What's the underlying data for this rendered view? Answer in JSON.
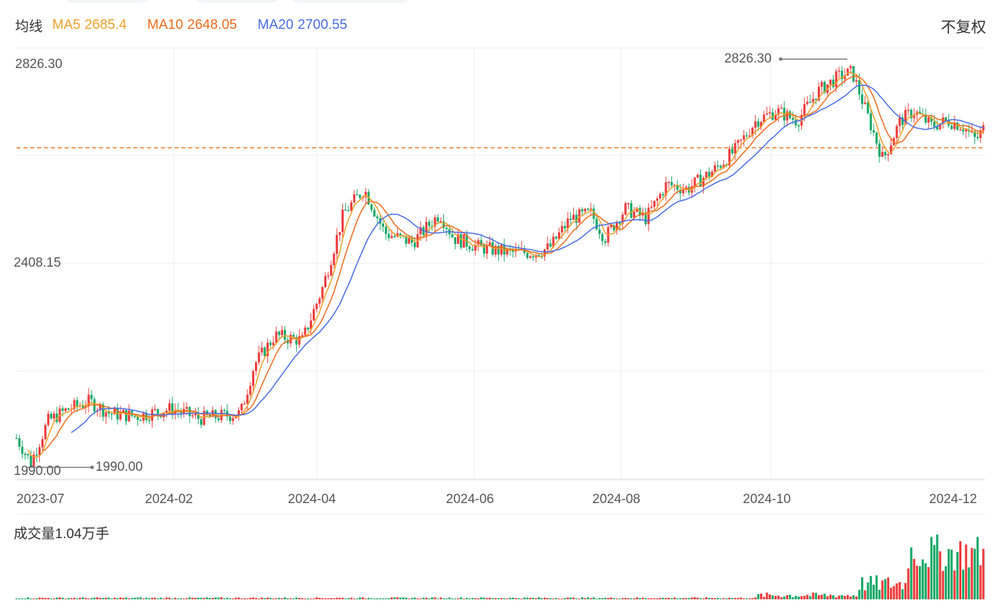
{
  "legend": {
    "title": "均线",
    "ma5": {
      "label": "MA5",
      "value": "2685.4",
      "color": "#f0a12a"
    },
    "ma10": {
      "label": "MA10",
      "value": "2648.05",
      "color": "#f06d1e"
    },
    "ma20": {
      "label": "MA20",
      "value": "2700.55",
      "color": "#4b6ee8"
    }
  },
  "adjust_label": "不复权",
  "volume_title": "成交量1.04万手",
  "colors": {
    "up": "#ee3a3a",
    "down": "#15a867",
    "dash": "#f07a22"
  },
  "chart_data": {
    "type": "candlestick",
    "y_ticks": [
      "2826.30",
      "2408.15",
      "1990.00"
    ],
    "x_ticks": [
      "2023-07",
      "2024-02",
      "2024-04",
      "2024-06",
      "2024-08",
      "2024-10",
      "2024-12"
    ],
    "max_marker": "2826.30",
    "min_marker": "1990.00",
    "ylim": [
      1990,
      2826.3
    ],
    "current_price_line": 2700,
    "ohlc_series": [
      {
        "date": "2023-07",
        "close": 2080
      },
      {
        "date": "2023-08",
        "close": 2120
      },
      {
        "date": "2024-01",
        "close": 2110
      },
      {
        "date": "2024-02",
        "close": 2095
      },
      {
        "date": "2024-03",
        "close": 2200
      },
      {
        "date": "2024-04",
        "close": 2560
      },
      {
        "date": "2024-05",
        "close": 2480
      },
      {
        "date": "2024-06",
        "close": 2440
      },
      {
        "date": "2024-07",
        "close": 2470
      },
      {
        "date": "2024-08",
        "close": 2560
      },
      {
        "date": "2024-09",
        "close": 2620
      },
      {
        "date": "2024-10",
        "close": 2730
      },
      {
        "date": "2024-11",
        "close": 2760
      },
      {
        "date": "2024-12",
        "close": 2685
      }
    ]
  }
}
